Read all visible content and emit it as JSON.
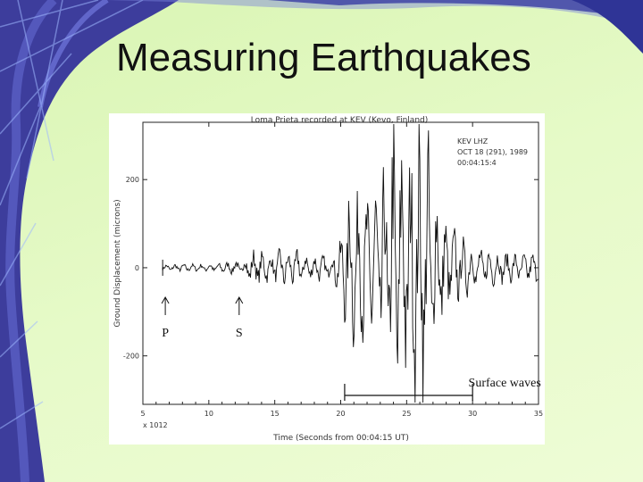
{
  "slide": {
    "title": "Measuring Earthquakes"
  },
  "chart_data": {
    "type": "line",
    "title": "Loma Prieta recorded at KEV (Kevo, Finland)",
    "station_info": [
      "KEV LHZ",
      "OCT 18 (291), 1989",
      "00:04:15:4"
    ],
    "xlabel": "Time (Seconds from 00:04:15 UT)",
    "ylabel": "Ground Displacement (microns)",
    "x_ticks": [
      "5",
      "10",
      "15",
      "20",
      "25",
      "30",
      "35"
    ],
    "x_origin_label": "x 1012",
    "y_ticks": [
      "200",
      "0",
      "-200"
    ],
    "xlim": [
      5,
      35
    ],
    "ylim": [
      -310,
      330
    ],
    "annotations": [
      {
        "text": "P",
        "x": 6.7
      },
      {
        "text": "S",
        "x": 12.3
      },
      {
        "text": "Surface waves",
        "x_start": 20.3,
        "x_end": 30
      }
    ],
    "series": [
      {
        "x": [
          6.5,
          7,
          8,
          9,
          10,
          11,
          12,
          12.5,
          13,
          13.5,
          14,
          14.5,
          15,
          15.5,
          16,
          16.5,
          17,
          17.5,
          18,
          18.5,
          19,
          19.5,
          20,
          20.5,
          21,
          21.5,
          22,
          22.5,
          23,
          23.5,
          24,
          24.5,
          25,
          25.5,
          26,
          26.5,
          27,
          27.5,
          28,
          28.5,
          29,
          29.5,
          30,
          31,
          32,
          33,
          34,
          35
        ],
        "amplitude": [
          5,
          8,
          8,
          8,
          8,
          10,
          15,
          20,
          30,
          40,
          35,
          30,
          25,
          50,
          30,
          40,
          35,
          30,
          25,
          30,
          20,
          35,
          60,
          150,
          170,
          160,
          150,
          160,
          200,
          250,
          320,
          300,
          250,
          260,
          300,
          320,
          200,
          150,
          100,
          90,
          70,
          60,
          50,
          40,
          35,
          30,
          30,
          30
        ]
      }
    ]
  }
}
